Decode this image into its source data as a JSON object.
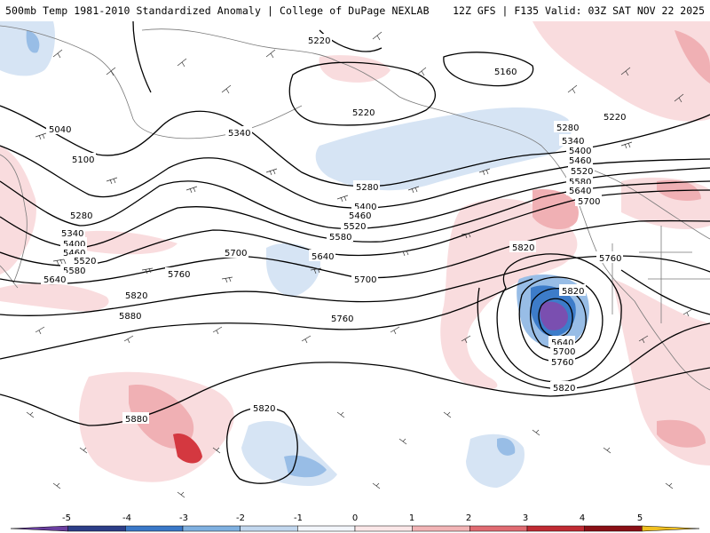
{
  "header": {
    "left_title": "500mb Temp 1981-2010 Standardized Anomaly | College of DuPage NEXLAB",
    "right_title": "12Z GFS | F135 Valid: 03Z SAT NOV 22 2025"
  },
  "contour_labels": [
    "5220",
    "5160",
    "5040",
    "5100",
    "5220",
    "5280",
    "5340",
    "5400",
    "5460",
    "5520",
    "5580",
    "5640",
    "5340",
    "5280",
    "5400",
    "5460",
    "5520",
    "5580",
    "5640",
    "5700",
    "5760",
    "5820",
    "5880",
    "5700",
    "5760",
    "5820",
    "5880",
    "5820",
    "5280",
    "5340",
    "5400",
    "5460",
    "5520",
    "5580",
    "5640",
    "5700",
    "5760",
    "5820",
    "5640",
    "5700",
    "5760",
    "5820",
    "5220"
  ],
  "legend": {
    "tick_labels": [
      "-5",
      "-4",
      "-3",
      "-2",
      "-1",
      "0",
      "1",
      "2",
      "3",
      "4",
      "5"
    ],
    "colors": [
      "#6a3fa0",
      "#2c3e88",
      "#3a78c8",
      "#7fb0e0",
      "#c2d7ee",
      "#f3f6fb",
      "#fbe7e8",
      "#f2b4b6",
      "#e06b72",
      "#c02a33",
      "#8a0f16",
      "#f0c020"
    ]
  },
  "anomaly_colors": {
    "warm_light": "#f9dcde",
    "warm_mid": "#f0b0b4",
    "warm_dark": "#d43840",
    "cold_light": "#d6e4f4",
    "cold_mid": "#98bde6",
    "cold_dark": "#3d7cc9",
    "cold_core": "#7a4fb0"
  }
}
